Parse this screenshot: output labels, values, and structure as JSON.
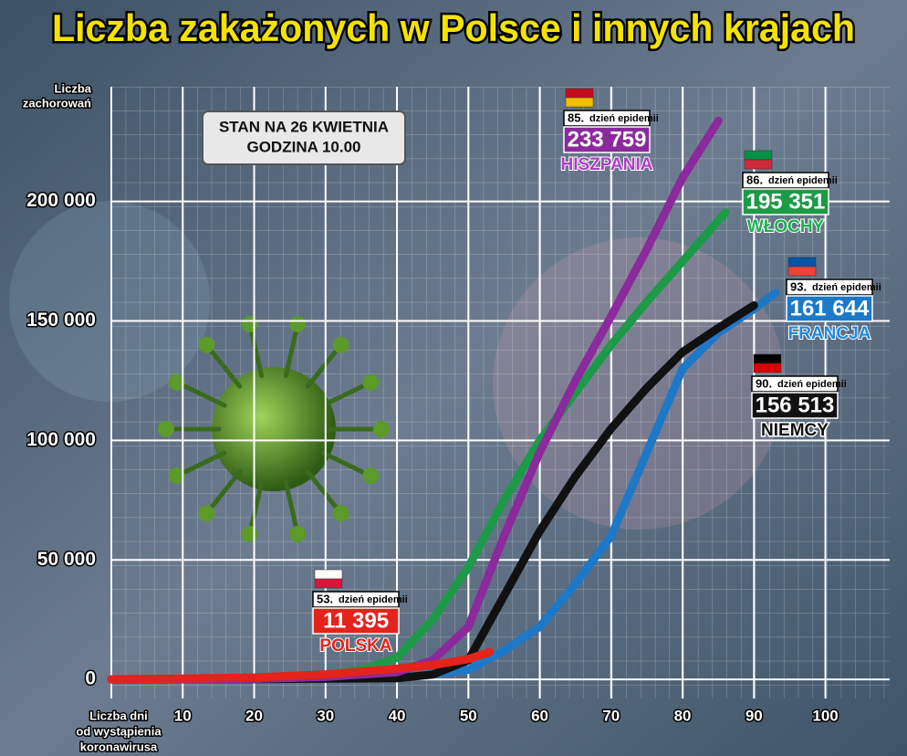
{
  "chart_data": {
    "type": "line",
    "title": "Liczba zakażonych w Polsce i innych krajach",
    "ylabel": [
      "Liczba",
      "zachorowań"
    ],
    "xlabel": [
      "Liczba dni",
      "od wystąpienia",
      "koronawirusa"
    ],
    "status": [
      "STAN NA 26 KWIETNIA",
      "GODZINA 10.00"
    ],
    "day_suffix": "dzień epidemii",
    "xlim": [
      0,
      109
    ],
    "xticks": [
      10,
      20,
      30,
      40,
      50,
      60,
      70,
      80,
      90,
      100
    ],
    "ylim": [
      -8000,
      248000
    ],
    "yticks": [
      0,
      {
        "value": 50000,
        "label": "50 000"
      },
      {
        "value": 100000,
        "label": "100 000"
      },
      {
        "value": 150000,
        "label": "150 000"
      },
      {
        "value": 200000,
        "label": "200 000"
      }
    ],
    "grid": true,
    "series": [
      {
        "name": "HISZPANIA",
        "color": "#8b2a9c",
        "day_label": "85.",
        "value_label": "233 759",
        "x": [
          0,
          10,
          20,
          30,
          40,
          45,
          50,
          55,
          60,
          65,
          70,
          75,
          80,
          85
        ],
        "values": [
          0,
          0,
          200,
          1000,
          3000,
          8000,
          22000,
          60000,
          95000,
          125000,
          152000,
          180000,
          210000,
          233759
        ]
      },
      {
        "name": "WŁOCHY",
        "color": "#1c9a48",
        "day_label": "86.",
        "value_label": "195 351",
        "x": [
          0,
          20,
          30,
          35,
          40,
          45,
          50,
          55,
          60,
          65,
          70,
          75,
          80,
          86
        ],
        "values": [
          0,
          200,
          2000,
          4000,
          9000,
          25000,
          47000,
          75000,
          100000,
          120000,
          140000,
          158000,
          175000,
          195351
        ]
      },
      {
        "name": "FRANCJA",
        "color": "#1e78c8",
        "day_label": "93.",
        "value_label": "161 644",
        "x": [
          0,
          20,
          30,
          40,
          50,
          55,
          60,
          65,
          70,
          75,
          80,
          85,
          90,
          93
        ],
        "values": [
          0,
          100,
          200,
          500,
          4000,
          12000,
          22000,
          40000,
          60000,
          95000,
          130000,
          145000,
          155000,
          161644
        ]
      },
      {
        "name": "NIEMCY",
        "color": "#111111",
        "day_label": "90.",
        "value_label": "156 513",
        "x": [
          0,
          20,
          30,
          40,
          45,
          50,
          55,
          60,
          65,
          70,
          75,
          80,
          85,
          90
        ],
        "values": [
          0,
          100,
          300,
          500,
          2000,
          8000,
          35000,
          62000,
          85000,
          105000,
          122000,
          137000,
          147000,
          156513
        ]
      },
      {
        "name": "POLSKA",
        "color": "#e3231c",
        "day_label": "53.",
        "value_label": "11 395",
        "x": [
          0,
          10,
          20,
          30,
          40,
          45,
          50,
          53
        ],
        "values": [
          0,
          300,
          800,
          2000,
          4500,
          6000,
          8500,
          11395
        ]
      }
    ]
  }
}
